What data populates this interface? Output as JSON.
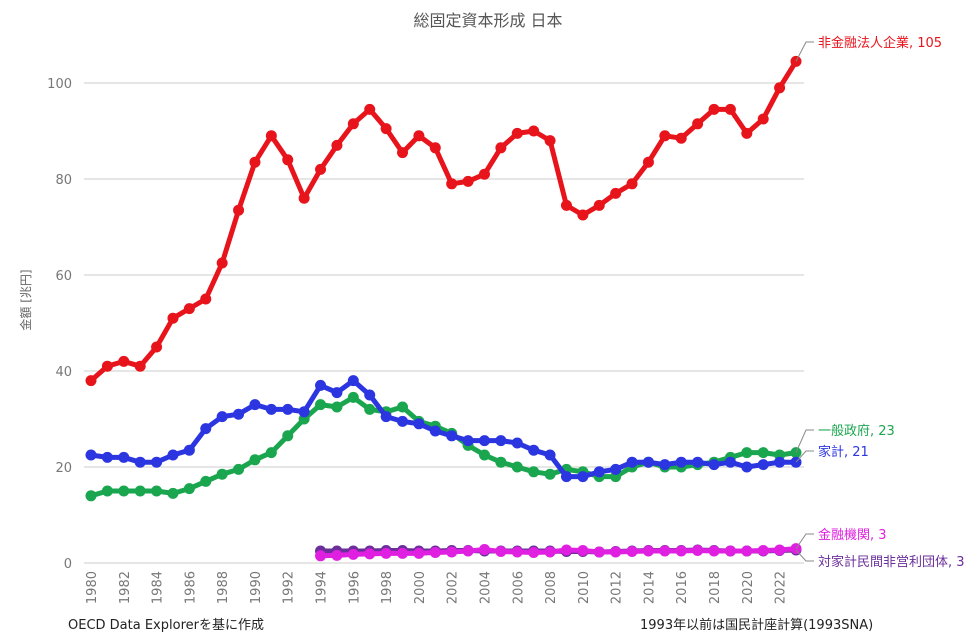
{
  "chart_data": {
    "type": "line",
    "title": "総固定資本形成 日本",
    "ylabel": "金額 [兆円]",
    "xlabel": "",
    "ylim": [
      0,
      110
    ],
    "yticks": [
      "0",
      "20",
      "40",
      "60",
      "80",
      "100"
    ],
    "ytick_values": [
      0,
      20,
      40,
      60,
      80,
      100
    ],
    "grid": true,
    "x_start": 1980,
    "x_end": 2023,
    "xticks": [
      "1980",
      "1982",
      "1984",
      "1986",
      "1988",
      "1990",
      "1992",
      "1994",
      "1996",
      "1998",
      "2000",
      "2002",
      "2004",
      "2006",
      "2008",
      "2010",
      "2012",
      "2014",
      "2016",
      "2018",
      "2020",
      "2022"
    ],
    "series": [
      {
        "name": "非金融法人企業",
        "end_label": "非金融法人企業, 105",
        "color": "#e8141c",
        "start": 1980,
        "values": [
          38,
          41,
          42,
          41,
          45,
          51,
          53,
          55,
          62.5,
          73.5,
          83.5,
          89,
          84,
          76,
          82,
          87,
          91.5,
          94.5,
          90.5,
          85.5,
          89,
          86.5,
          79,
          79.5,
          81,
          86.5,
          89.5,
          90,
          88,
          74.5,
          72.5,
          74.5,
          77,
          79,
          83.5,
          89,
          88.5,
          91.5,
          94.5,
          94.5,
          89.5,
          92.5,
          99,
          104.5
        ]
      },
      {
        "name": "一般政府",
        "end_label": "一般政府, 23",
        "color": "#1aa64f",
        "start": 1980,
        "values": [
          14,
          15,
          15,
          15,
          15,
          14.5,
          15.5,
          17,
          18.5,
          19.5,
          21.5,
          23,
          26.5,
          30,
          33,
          32.5,
          34.5,
          32,
          31.5,
          32.5,
          29.5,
          28.5,
          27,
          24.5,
          22.5,
          21,
          20,
          19,
          18.5,
          19.5,
          19,
          18,
          18,
          20,
          21,
          20,
          20,
          20.5,
          21,
          22,
          23,
          23,
          22.5,
          23
        ]
      },
      {
        "name": "家計",
        "end_label": "家計, 21",
        "color": "#2b35e0",
        "start": 1980,
        "values": [
          22.5,
          22,
          22,
          21,
          21,
          22.5,
          23.5,
          28,
          30.5,
          31,
          33,
          32,
          32,
          31.5,
          37,
          35.5,
          38,
          35,
          30.5,
          29.5,
          29,
          27.5,
          26.5,
          25.5,
          25.5,
          25.5,
          25,
          23.5,
          22.5,
          18,
          18,
          19,
          19.5,
          21,
          21,
          20.5,
          21,
          21,
          20.5,
          21,
          20,
          20.5,
          21,
          21
        ]
      },
      {
        "name": "金融機関",
        "end_label": "金融機関, 3",
        "color": "#e020e0",
        "start": 1994,
        "values": [
          1.5,
          1.6,
          1.8,
          1.9,
          2,
          2,
          2,
          2.2,
          2.3,
          2.5,
          2.8,
          2.4,
          2.3,
          2.2,
          2.3,
          2.7,
          2.6,
          2.3,
          2.3,
          2.4,
          2.5,
          2.5,
          2.5,
          2.6,
          2.5,
          2.5,
          2.5,
          2.6,
          2.7,
          3
        ]
      },
      {
        "name": "対家計民間非営利団体",
        "end_label": "対家計民間非営利団体, 3",
        "color": "#6b2f9a",
        "start": 1994,
        "values": [
          2.5,
          2.5,
          2.5,
          2.5,
          2.6,
          2.6,
          2.5,
          2.5,
          2.6,
          2.6,
          2.5,
          2.5,
          2.5,
          2.5,
          2.5,
          2.4,
          2.4,
          2.3,
          2.4,
          2.5,
          2.6,
          2.6,
          2.6,
          2.7,
          2.6,
          2.5,
          2.5,
          2.5,
          2.6,
          2.7
        ]
      }
    ]
  },
  "footer": {
    "source": "OECD Data Explorerを基に作成",
    "note": "1993年以前は国民計座計算(1993SNA)"
  }
}
